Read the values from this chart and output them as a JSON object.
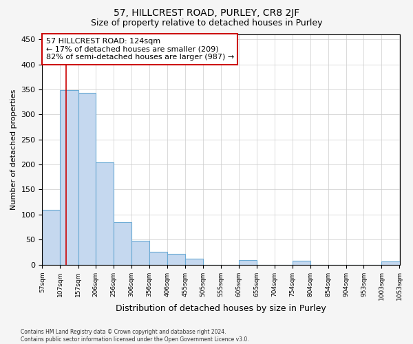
{
  "title1": "57, HILLCREST ROAD, PURLEY, CR8 2JF",
  "title2": "Size of property relative to detached houses in Purley",
  "xlabel": "Distribution of detached houses by size in Purley",
  "ylabel": "Number of detached properties",
  "bin_edges": [
    57,
    107,
    157,
    206,
    256,
    306,
    356,
    406,
    455,
    505,
    555,
    605,
    655,
    704,
    754,
    804,
    854,
    904,
    953,
    1003,
    1053
  ],
  "bar_heights": [
    110,
    348,
    343,
    204,
    85,
    47,
    25,
    22,
    12,
    0,
    0,
    9,
    0,
    0,
    8,
    0,
    0,
    0,
    0,
    6
  ],
  "bar_color": "#c5d8ef",
  "bar_edge_color": "#6aaad4",
  "property_size": 124,
  "vline_color": "#cc0000",
  "annotation_line1": "57 HILLCREST ROAD: 124sqm",
  "annotation_line2": "← 17% of detached houses are smaller (209)",
  "annotation_line3": "82% of semi-detached houses are larger (987) →",
  "annotation_box_color": "#cc0000",
  "ylim": [
    0,
    460
  ],
  "yticks": [
    0,
    50,
    100,
    150,
    200,
    250,
    300,
    350,
    400,
    450
  ],
  "background_color": "#f5f5f5",
  "plot_bg_color": "#ffffff",
  "grid_color": "#cccccc",
  "footnote": "Contains HM Land Registry data © Crown copyright and database right 2024.\nContains public sector information licensed under the Open Government Licence v3.0.",
  "title1_fontsize": 10,
  "title2_fontsize": 9,
  "xlabel_fontsize": 9,
  "ylabel_fontsize": 8
}
